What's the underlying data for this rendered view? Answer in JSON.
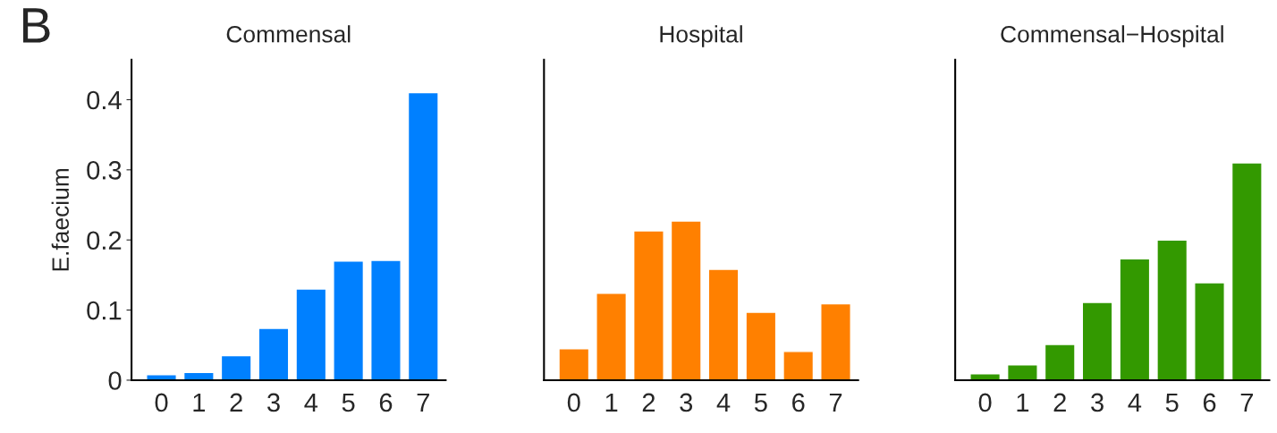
{
  "chart_data": [
    {
      "type": "bar",
      "title": "Commensal",
      "ylabel": "E.faecium",
      "annotations": [
        "B"
      ],
      "categories": [
        "0",
        "1",
        "2",
        "3",
        "4",
        "5",
        "6",
        "7"
      ],
      "values": [
        0.008,
        0.011,
        0.035,
        0.074,
        0.13,
        0.17,
        0.171,
        0.41
      ],
      "color": "#0080ff",
      "ylim": [
        0,
        0.457
      ],
      "yticks": [
        0,
        0.1,
        0.2,
        0.3,
        0.4
      ],
      "grid": false
    },
    {
      "type": "bar",
      "title": "Hospital",
      "categories": [
        "0",
        "1",
        "2",
        "3",
        "4",
        "5",
        "6",
        "7"
      ],
      "values": [
        0.045,
        0.124,
        0.213,
        0.227,
        0.158,
        0.097,
        0.041,
        0.109
      ],
      "color": "#ff8000",
      "ylim": [
        0,
        0.457
      ],
      "tick_labels": "x",
      "grid": false
    },
    {
      "type": "bar",
      "title": "Commensal−Hospital",
      "categories": [
        "0",
        "1",
        "2",
        "3",
        "4",
        "5",
        "6",
        "7"
      ],
      "values": [
        0.009,
        0.022,
        0.051,
        0.111,
        0.173,
        0.2,
        0.139,
        0.31
      ],
      "color": "#339900",
      "ylim": [
        0,
        0.457
      ],
      "tick_labels": "x",
      "grid": false
    }
  ]
}
